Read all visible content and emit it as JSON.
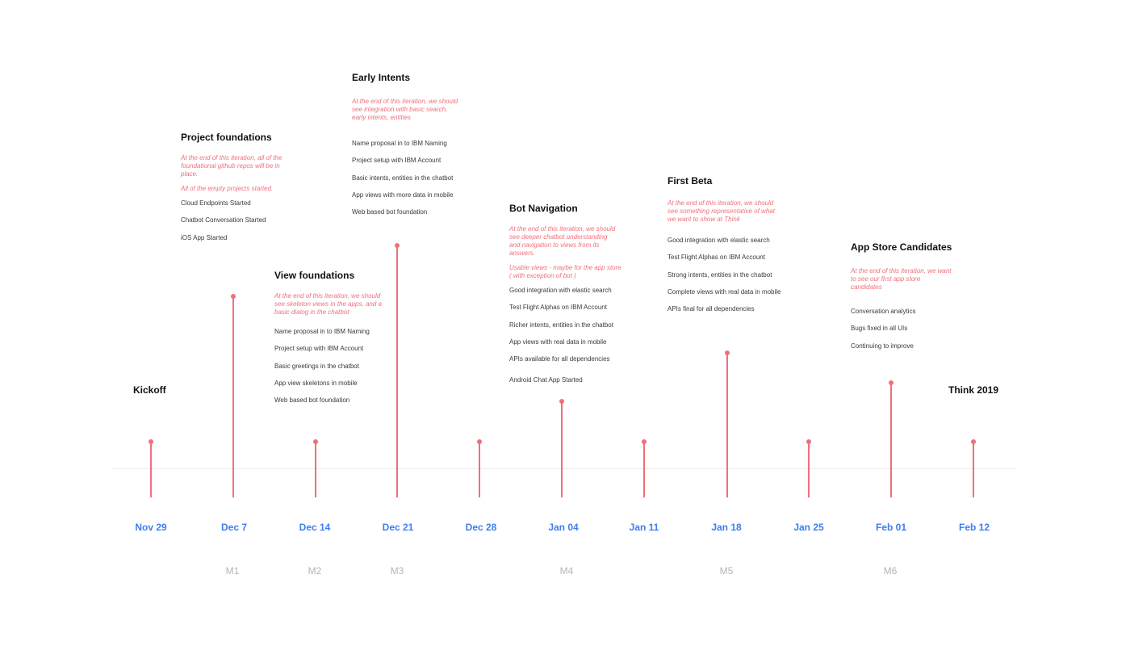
{
  "timeline": {
    "dates": [
      "Nov  29",
      "Dec 7",
      "Dec 14",
      "Dec 21",
      "Dec 28",
      "Jan 04",
      "Jan 11",
      "Jan 18",
      "Jan 25",
      "Feb 01",
      "Feb 12"
    ],
    "milestones": [
      "M1",
      "M2",
      "M3",
      "M4",
      "M5",
      "M6"
    ],
    "kickoff": "Kickoff",
    "end_event": "Think 2019"
  },
  "iterations": [
    {
      "title": "Project foundations",
      "desc": [
        "At the end of this iteration, all of the foundational github repos will be in place.",
        "All of the empty projects started."
      ],
      "items": [
        "Cloud Endpoints Started",
        "Chatbot Conversation Started",
        "iOS App Started"
      ]
    },
    {
      "title": "View foundations",
      "desc": [
        "At the end of this iteration, we should see skeleton views in the apps, and a basic dialog in the chatbot"
      ],
      "items": [
        "Name proposal in to IBM Naming",
        "Project setup with IBM Account",
        "Basic greetings in the chatbot",
        "App view skeletons in mobile",
        "Web based bot foundation"
      ]
    },
    {
      "title": "Early Intents",
      "desc": [
        "At the end of this iteration, we should see integration with basic search, early intents, entities"
      ],
      "items": [
        "Name proposal in to IBM Naming",
        "Project setup with IBM Account",
        "Basic intents, entities in the chatbot",
        "App views with more data in mobile",
        "Web based bot foundation"
      ]
    },
    {
      "title": "Bot Navigation",
      "desc": [
        "At the end of this iteration, we should see deeper chatbot understanding and navigation to views from its answers.",
        "Usable views - maybe for the app store ( with exception of bot )"
      ],
      "items": [
        "Good integration with elastic search",
        "Test Flight Alphas on IBM Account",
        "Richer intents, entities in the chatbot",
        "App views with real data in mobile",
        "APIs available for all dependencies",
        " Android Chat App Started"
      ]
    },
    {
      "title": "First Beta",
      "desc": [
        "At the end of this iteration, we should see  something representative of what we want to show at Think"
      ],
      "items": [
        "Good integration with elastic search",
        "Test Flight Alphas on IBM Account",
        "Strong intents, entities in the chatbot",
        "Complete views with real data in mobile",
        "APIs final for all dependencies"
      ]
    },
    {
      "title": "App Store Candidates",
      "desc": [
        "At the end of this iteration, we want to see our first app store candidates"
      ],
      "items": [
        "Conversation analytics",
        "Bugs fixed in all UIs",
        "Continuing to improve"
      ]
    }
  ],
  "colors": {
    "accent": "#f0707a",
    "date": "#3d7ef0",
    "milestone": "#b5b5b5",
    "axis": "#ececec"
  }
}
